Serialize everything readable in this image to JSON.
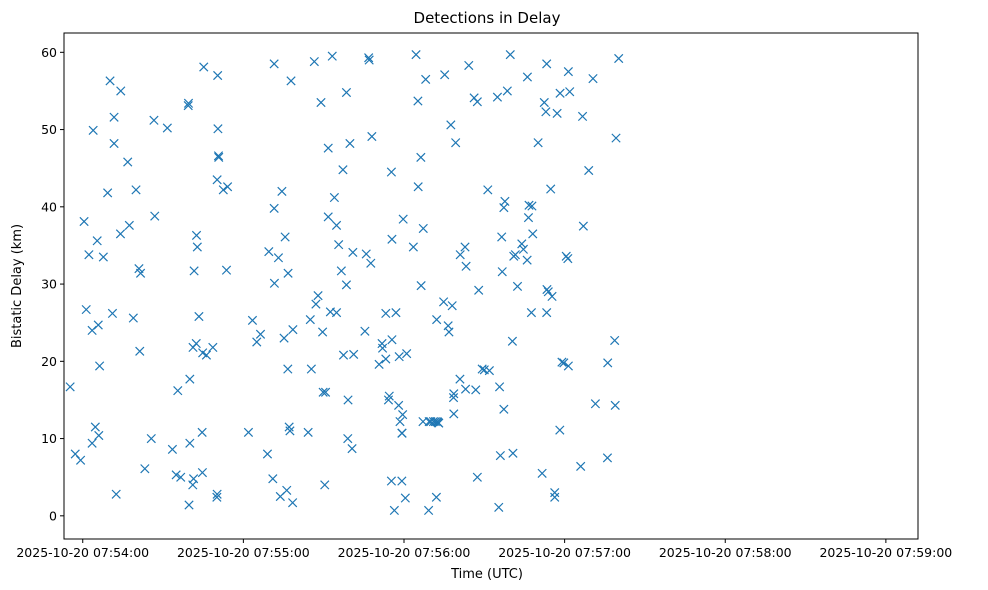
{
  "chart_data": {
    "type": "scatter",
    "title": "Detections in Delay",
    "xlabel": "Time (UTC)",
    "ylabel": "Bistatic Delay (km)",
    "marker": "x",
    "color": "#1f77b4",
    "grid": false,
    "x_unit": "seconds after 2025-10-20 07:54:00",
    "xlim": [
      -7,
      312
    ],
    "ylim": [
      -3,
      62.5
    ],
    "x_ticks": [
      {
        "value": 0,
        "label": "2025-10-20 07:54:00"
      },
      {
        "value": 60,
        "label": "2025-10-20 07:55:00"
      },
      {
        "value": 120,
        "label": "2025-10-20 07:56:00"
      },
      {
        "value": 180,
        "label": "2025-10-20 07:57:00"
      },
      {
        "value": 240,
        "label": "2025-10-20 07:58:00"
      },
      {
        "value": 300,
        "label": "2025-10-20 07:59:00"
      }
    ],
    "y_ticks": [
      {
        "value": 0,
        "label": "0"
      },
      {
        "value": 10,
        "label": "10"
      },
      {
        "value": 20,
        "label": "20"
      },
      {
        "value": 30,
        "label": "30"
      },
      {
        "value": 40,
        "label": "40"
      },
      {
        "value": 50,
        "label": "50"
      },
      {
        "value": 60,
        "label": "60"
      }
    ],
    "points": [
      [
        -4.7,
        16.7
      ],
      [
        -2.8,
        8.0
      ],
      [
        -0.8,
        7.2
      ],
      [
        0.5,
        38.1
      ],
      [
        1.3,
        26.7
      ],
      [
        2.3,
        33.8
      ],
      [
        3.5,
        24.0
      ],
      [
        3.9,
        49.9
      ],
      [
        4.7,
        11.5
      ],
      [
        3.5,
        9.4
      ],
      [
        5.4,
        35.6
      ],
      [
        6.0,
        10.4
      ],
      [
        5.8,
        24.7
      ],
      [
        6.3,
        19.4
      ],
      [
        7.7,
        33.5
      ],
      [
        9.3,
        41.8
      ],
      [
        10.2,
        56.3
      ],
      [
        11.1,
        26.2
      ],
      [
        11.7,
        51.6
      ],
      [
        11.7,
        48.2
      ],
      [
        12.5,
        2.8
      ],
      [
        14.2,
        55.0
      ],
      [
        14.1,
        36.5
      ],
      [
        16.8,
        45.8
      ],
      [
        17.4,
        37.6
      ],
      [
        18.9,
        25.6
      ],
      [
        19.9,
        42.2
      ],
      [
        21.0,
        32.0
      ],
      [
        21.6,
        31.4
      ],
      [
        21.3,
        21.3
      ],
      [
        23.2,
        6.1
      ],
      [
        25.6,
        10.0
      ],
      [
        26.6,
        51.2
      ],
      [
        26.9,
        38.8
      ],
      [
        31.6,
        50.2
      ],
      [
        33.5,
        8.6
      ],
      [
        34.9,
        5.3
      ],
      [
        35.5,
        16.2
      ],
      [
        36.6,
        5.0
      ],
      [
        39.5,
        53.4
      ],
      [
        39.4,
        53.1
      ],
      [
        39.7,
        1.4
      ],
      [
        40.0,
        9.4
      ],
      [
        40.0,
        17.7
      ],
      [
        41.2,
        21.8
      ],
      [
        41.6,
        31.7
      ],
      [
        41.4,
        4.8
      ],
      [
        41.1,
        4.0
      ],
      [
        42.4,
        22.3
      ],
      [
        42.5,
        36.3
      ],
      [
        42.8,
        34.8
      ],
      [
        43.4,
        25.8
      ],
      [
        44.8,
        21.1
      ],
      [
        44.6,
        10.8
      ],
      [
        44.7,
        5.6
      ],
      [
        45.2,
        58.1
      ],
      [
        46.2,
        20.8
      ],
      [
        48.6,
        21.8
      ],
      [
        50.2,
        2.8
      ],
      [
        50.1,
        2.4
      ],
      [
        50.4,
        57.0
      ],
      [
        50.5,
        50.1
      ],
      [
        50.7,
        46.6
      ],
      [
        50.8,
        46.4
      ],
      [
        50.2,
        43.5
      ],
      [
        52.5,
        42.2
      ],
      [
        53.7,
        31.8
      ],
      [
        54.1,
        42.6
      ],
      [
        61.9,
        10.8
      ],
      [
        63.4,
        25.3
      ],
      [
        65.0,
        22.5
      ],
      [
        66.4,
        23.5
      ],
      [
        69.0,
        8.0
      ],
      [
        69.5,
        34.2
      ],
      [
        71.0,
        4.8
      ],
      [
        71.6,
        30.1
      ],
      [
        71.5,
        39.8
      ],
      [
        71.5,
        58.5
      ],
      [
        73.1,
        33.4
      ],
      [
        73.8,
        2.5
      ],
      [
        74.4,
        42.0
      ],
      [
        75.2,
        23.0
      ],
      [
        75.6,
        36.1
      ],
      [
        76.2,
        3.3
      ],
      [
        76.6,
        19.0
      ],
      [
        76.7,
        31.4
      ],
      [
        77.1,
        11.5
      ],
      [
        77.4,
        11.0
      ],
      [
        77.8,
        56.3
      ],
      [
        78.5,
        24.1
      ],
      [
        78.4,
        1.7
      ],
      [
        84.2,
        10.8
      ],
      [
        85.0,
        25.4
      ],
      [
        85.4,
        19.0
      ],
      [
        86.5,
        58.8
      ],
      [
        87.1,
        27.4
      ],
      [
        87.9,
        28.5
      ],
      [
        89.0,
        53.5
      ],
      [
        89.6,
        23.8
      ],
      [
        89.8,
        16.0
      ],
      [
        90.4,
        4.0
      ],
      [
        90.7,
        16.0
      ],
      [
        91.7,
        38.7
      ],
      [
        91.7,
        47.6
      ],
      [
        92.5,
        26.4
      ],
      [
        93.2,
        59.5
      ],
      [
        94.0,
        41.2
      ],
      [
        94.8,
        26.3
      ],
      [
        94.8,
        37.6
      ],
      [
        95.6,
        35.1
      ],
      [
        96.6,
        31.7
      ],
      [
        97.4,
        20.8
      ],
      [
        97.2,
        44.8
      ],
      [
        98.5,
        54.8
      ],
      [
        98.5,
        29.9
      ],
      [
        99.0,
        10.0
      ],
      [
        99.1,
        15.0
      ],
      [
        99.8,
        48.2
      ],
      [
        100.6,
        8.7
      ],
      [
        100.9,
        34.1
      ],
      [
        101.2,
        20.9
      ],
      [
        105.4,
        23.9
      ],
      [
        105.9,
        33.9
      ],
      [
        106.8,
        59.3
      ],
      [
        107.0,
        59.0
      ],
      [
        107.6,
        32.7
      ],
      [
        108.0,
        49.1
      ],
      [
        110.7,
        19.6
      ],
      [
        111.8,
        22.3
      ],
      [
        112.0,
        21.7
      ],
      [
        113.2,
        20.3
      ],
      [
        113.2,
        26.2
      ],
      [
        114.5,
        15.5
      ],
      [
        114.2,
        15.0
      ],
      [
        115.5,
        22.8
      ],
      [
        115.3,
        44.5
      ],
      [
        115.5,
        35.8
      ],
      [
        115.3,
        4.5
      ],
      [
        116.4,
        0.7
      ],
      [
        117.0,
        26.3
      ],
      [
        118.0,
        14.3
      ],
      [
        118.2,
        20.6
      ],
      [
        118.5,
        12.2
      ],
      [
        119.2,
        10.7
      ],
      [
        119.5,
        13.1
      ],
      [
        119.3,
        10.7
      ],
      [
        119.2,
        4.5
      ],
      [
        119.7,
        38.4
      ],
      [
        120.5,
        2.3
      ],
      [
        121.0,
        21.0
      ],
      [
        123.5,
        34.8
      ],
      [
        124.5,
        59.7
      ],
      [
        125.2,
        53.7
      ],
      [
        125.3,
        42.6
      ],
      [
        126.3,
        46.4
      ],
      [
        126.4,
        29.8
      ],
      [
        127.1,
        12.2
      ],
      [
        127.2,
        37.2
      ],
      [
        128.1,
        56.5
      ],
      [
        129.2,
        0.7
      ],
      [
        129.4,
        12.2
      ],
      [
        130.0,
        12.2
      ],
      [
        131.0,
        12.2
      ],
      [
        131.7,
        12.2
      ],
      [
        132.2,
        25.4
      ],
      [
        132.4,
        12.2
      ],
      [
        132.7,
        12.1
      ],
      [
        132.1,
        2.4
      ],
      [
        133.0,
        12.0
      ],
      [
        134.8,
        27.7
      ],
      [
        135.2,
        57.1
      ],
      [
        136.5,
        24.6
      ],
      [
        136.8,
        23.8
      ],
      [
        137.5,
        50.6
      ],
      [
        138.0,
        27.2
      ],
      [
        138.5,
        15.3
      ],
      [
        138.6,
        15.8
      ],
      [
        138.6,
        13.2
      ],
      [
        139.3,
        48.3
      ],
      [
        140.9,
        17.7
      ],
      [
        141.0,
        33.8
      ],
      [
        142.8,
        34.8
      ],
      [
        143.2,
        32.3
      ],
      [
        143.0,
        16.4
      ],
      [
        144.2,
        58.3
      ],
      [
        146.2,
        54.1
      ],
      [
        146.8,
        16.3
      ],
      [
        147.4,
        53.6
      ],
      [
        147.4,
        5.0
      ],
      [
        147.9,
        29.2
      ],
      [
        149.2,
        19.0
      ],
      [
        150.0,
        18.9
      ],
      [
        151.3,
        42.2
      ],
      [
        151.9,
        18.8
      ],
      [
        154.9,
        54.2
      ],
      [
        155.4,
        1.1
      ],
      [
        155.7,
        16.7
      ],
      [
        156.0,
        7.8
      ],
      [
        156.7,
        31.6
      ],
      [
        156.5,
        36.1
      ],
      [
        157.3,
        39.9
      ],
      [
        157.7,
        40.7
      ],
      [
        157.3,
        13.8
      ],
      [
        158.6,
        55.0
      ],
      [
        159.7,
        59.7
      ],
      [
        160.5,
        22.6
      ],
      [
        160.7,
        8.1
      ],
      [
        161.0,
        33.6
      ],
      [
        161.6,
        33.8
      ],
      [
        162.4,
        29.7
      ],
      [
        164.0,
        35.2
      ],
      [
        164.6,
        34.5
      ],
      [
        166.1,
        56.8
      ],
      [
        166.0,
        33.1
      ],
      [
        166.7,
        40.2
      ],
      [
        166.5,
        38.6
      ],
      [
        167.8,
        40.1
      ],
      [
        167.6,
        26.3
      ],
      [
        168.1,
        36.5
      ],
      [
        170.1,
        48.3
      ],
      [
        171.6,
        5.5
      ],
      [
        172.4,
        53.5
      ],
      [
        173.3,
        58.5
      ],
      [
        173.0,
        52.3
      ],
      [
        173.4,
        29.3
      ],
      [
        173.3,
        26.3
      ],
      [
        173.9,
        29.0
      ],
      [
        174.8,
        42.3
      ],
      [
        175.3,
        28.4
      ],
      [
        176.3,
        3.0
      ],
      [
        176.3,
        2.4
      ],
      [
        177.2,
        52.1
      ],
      [
        178.2,
        11.1
      ],
      [
        178.3,
        54.7
      ],
      [
        179.0,
        19.9
      ],
      [
        179.7,
        19.8
      ],
      [
        180.6,
        33.6
      ],
      [
        181.2,
        33.3
      ],
      [
        181.4,
        19.4
      ],
      [
        181.4,
        57.5
      ],
      [
        181.9,
        54.9
      ],
      [
        186.0,
        6.4
      ],
      [
        186.7,
        51.7
      ],
      [
        187.0,
        37.5
      ],
      [
        189.0,
        44.7
      ],
      [
        190.6,
        56.6
      ],
      [
        191.5,
        14.5
      ],
      [
        196.1,
        19.8
      ],
      [
        196.0,
        7.5
      ],
      [
        198.7,
        22.7
      ],
      [
        198.9,
        14.3
      ],
      [
        199.2,
        48.9
      ],
      [
        200.2,
        59.2
      ]
    ]
  }
}
